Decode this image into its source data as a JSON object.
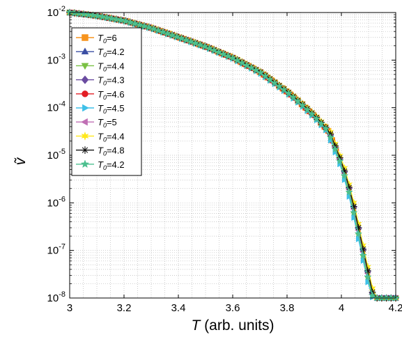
{
  "chart_data": {
    "type": "line",
    "xlabel_symbol": "T",
    "xlabel_rest": " (arb. units)",
    "ylabel": "ṽ",
    "xlim": [
      3,
      4.2
    ],
    "ylim": [
      1e-08,
      0.01
    ],
    "yscale": "log",
    "grid": true,
    "legend_position": "top-left",
    "x_ticks": [
      3,
      3.2,
      3.4,
      3.6,
      3.8,
      4,
      4.2
    ],
    "x_tick_labels": [
      "3",
      "3.2",
      "3.4",
      "3.6",
      "3.8",
      "4",
      "4.2"
    ],
    "y_tick_exponents": [
      -8,
      -7,
      -6,
      -5,
      -4,
      -3,
      -2
    ],
    "y_tick_base": "10",
    "curve_shape": {
      "x": [
        3.0,
        3.1,
        3.2,
        3.3,
        3.4,
        3.5,
        3.6,
        3.7,
        3.8,
        3.85,
        3.9,
        3.95,
        4.0,
        4.03,
        4.06,
        4.09,
        4.11,
        4.12,
        4.2
      ],
      "y": [
        0.01,
        0.0085,
        0.0067,
        0.0047,
        0.003,
        0.0019,
        0.0011,
        0.00055,
        0.00021,
        0.00012,
        6.5e-05,
        3.2e-05,
        6e-06,
        1.5e-06,
        2.5e-07,
        4e-08,
        1.2e-08,
        1e-08,
        1e-08
      ]
    },
    "series": [
      {
        "name": "T0=6",
        "sub_value": "6",
        "color": "#f7941d",
        "marker": "square",
        "end_x": 3.98,
        "shift": 0.003
      },
      {
        "name": "T0=4.2",
        "sub_value": "4.2",
        "color": "#3a4ea3",
        "marker": "triangle-up",
        "end_x": 4.2,
        "shift": 0.007
      },
      {
        "name": "T0=4.4",
        "sub_value": "4.4",
        "color": "#7ac143",
        "marker": "triangle-down",
        "end_x": 4.2,
        "shift": 0.0
      },
      {
        "name": "T0=4.3",
        "sub_value": "4.3",
        "color": "#6a4ba0",
        "marker": "diamond",
        "end_x": 4.2,
        "shift": 0.005
      },
      {
        "name": "T0=4.6",
        "sub_value": "4.6",
        "color": "#e31e25",
        "marker": "circle",
        "end_x": 3.98,
        "shift": 0.002
      },
      {
        "name": "T0=4.5",
        "sub_value": "4.5",
        "color": "#3fc0e8",
        "marker": "triangle-right",
        "end_x": 4.2,
        "shift": -0.003
      },
      {
        "name": "T0=5",
        "sub_value": "5",
        "color": "#c06fb4",
        "marker": "triangle-left",
        "end_x": 4.2,
        "shift": 0.004
      },
      {
        "name": "T0=4.4",
        "sub_value": "4.4",
        "color": "#ffe81a",
        "marker": "star6",
        "end_x": 4.2,
        "shift": 0.009
      },
      {
        "name": "T0=4.8",
        "sub_value": "4.8",
        "color": "#111111",
        "marker": "asterisk",
        "end_x": 4.2,
        "shift": 0.006
      },
      {
        "name": "T0=4.2",
        "sub_value": "4.2",
        "color": "#4cbf8f",
        "marker": "pentagram",
        "end_x": 4.2,
        "shift": 0.001
      }
    ]
  }
}
